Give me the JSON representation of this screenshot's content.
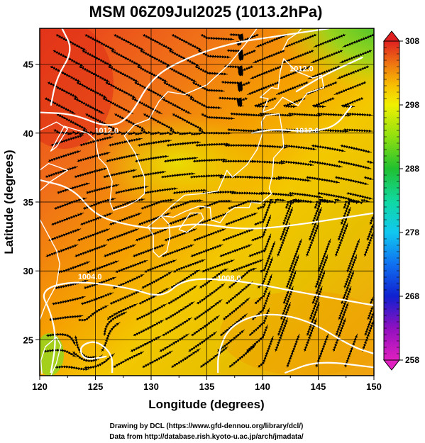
{
  "title": "MSM 06Z09Jul2025 (1013.2hPa)",
  "x_axis": {
    "label": "Longitude (degrees)",
    "range": [
      120,
      150
    ],
    "ticks": [
      120,
      125,
      130,
      135,
      140,
      145,
      150
    ]
  },
  "y_axis": {
    "label": "Latitude  (degrees)",
    "range": [
      22.4,
      47.6
    ],
    "ticks": [
      25,
      30,
      35,
      40,
      45
    ]
  },
  "colorbar": {
    "range": [
      258,
      308
    ],
    "labels": [
      308,
      298,
      288,
      278,
      268,
      258
    ],
    "stops": [
      {
        "v": 258,
        "c": "#e020c0"
      },
      {
        "v": 263,
        "c": "#9010c0"
      },
      {
        "v": 268,
        "c": "#1020d0"
      },
      {
        "v": 273,
        "c": "#1070f0"
      },
      {
        "v": 278,
        "c": "#10c8f0"
      },
      {
        "v": 283,
        "c": "#10d8a0"
      },
      {
        "v": 288,
        "c": "#20c030"
      },
      {
        "v": 293,
        "c": "#90e010"
      },
      {
        "v": 298,
        "c": "#f0f000"
      },
      {
        "v": 301,
        "c": "#f8c000"
      },
      {
        "v": 304,
        "c": "#f08010"
      },
      {
        "v": 308,
        "c": "#e02020"
      }
    ]
  },
  "contour_labels": [
    {
      "text": "1004.0",
      "lon": 124.5,
      "lat": 29.4
    },
    {
      "text": "1008.0",
      "lon": 137.0,
      "lat": 29.3
    },
    {
      "text": "1012.0",
      "lon": 126.0,
      "lat": 40.0
    },
    {
      "text": "1012.0",
      "lon": 143.5,
      "lat": 44.5
    },
    {
      "text": "1012.0",
      "lon": 144.0,
      "lat": 40.0
    }
  ],
  "credits": [
    "Drawing by DCL (https://www.gfd-dennou.org/library/dcl/)",
    "Data from http://database.rish.kyoto-u.ac.jp/arch/jmadata/"
  ],
  "colors": {
    "frame": "#000000",
    "grid": "#000000",
    "streamline": "#000000",
    "isobar": "#ffffff",
    "coastline": "#ffffff"
  }
}
